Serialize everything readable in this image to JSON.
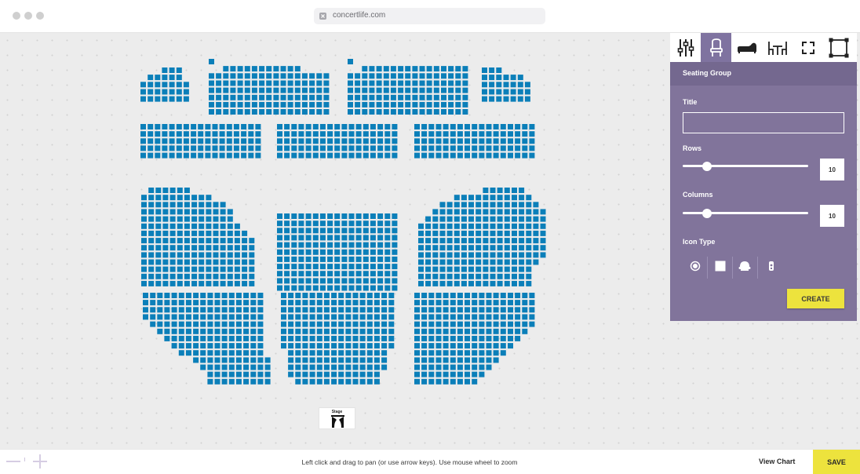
{
  "browser": {
    "url": "concertlife.com",
    "window_controls": [
      "dot",
      "dot",
      "dot"
    ]
  },
  "panel": {
    "tabs": [
      {
        "icon": "sliders-icon",
        "active": false
      },
      {
        "icon": "chair-icon",
        "active": true
      },
      {
        "icon": "sofa-icon",
        "active": false
      },
      {
        "icon": "table-icon",
        "active": false
      },
      {
        "icon": "expand-icon",
        "active": false
      },
      {
        "icon": "shape-icon",
        "active": false
      }
    ],
    "header": "Seating Group",
    "title_label": "Title",
    "title_value": "",
    "rows_label": "Rows",
    "rows_value": "10",
    "columns_label": "Columns",
    "columns_value": "10",
    "icon_type_label": "Icon Type",
    "icon_types": [
      "circle-seat-icon",
      "square-seat-icon",
      "armchair-icon",
      "standing-icon"
    ],
    "create_label": "CREATE"
  },
  "stage": {
    "label": "Stage"
  },
  "footer": {
    "hint": "Left click and drag to pan (or use arrow keys). Use mouse wheel to zoom",
    "view_chart_label": "View Chart",
    "save_label": "SAVE"
  },
  "colors": {
    "seat": "#0b7fb9",
    "panel": "#81749b",
    "panel_header": "#74688f",
    "accent_button": "#ede33d"
  }
}
